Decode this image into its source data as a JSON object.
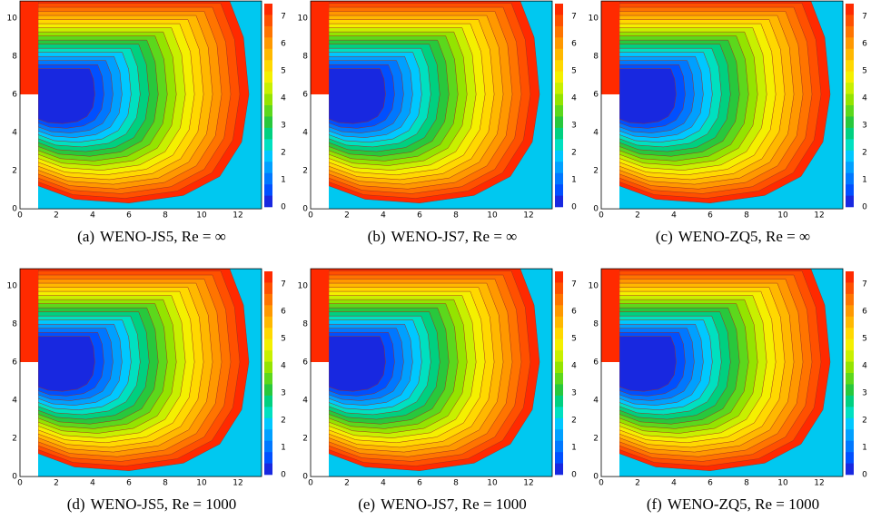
{
  "axes": {
    "xticks": [
      0,
      2,
      4,
      6,
      8,
      10,
      12
    ],
    "yticks": [
      0,
      2,
      4,
      6,
      8,
      10
    ],
    "colorbar_ticks": [
      0,
      1,
      2,
      3,
      4,
      5,
      6,
      7
    ]
  },
  "panels": [
    {
      "label": "(a)",
      "caption": "WENO-JS5, Re = ∞"
    },
    {
      "label": "(b)",
      "caption": "WENO-JS7, Re = ∞"
    },
    {
      "label": "(c)",
      "caption": "WENO-ZQ5, Re = ∞"
    },
    {
      "label": "(d)",
      "caption": "WENO-JS5, Re = 1000"
    },
    {
      "label": "(e)",
      "caption": "WENO-JS7, Re = 1000"
    },
    {
      "label": "(f)",
      "caption": "WENO-ZQ5, Re = 1000"
    }
  ]
}
